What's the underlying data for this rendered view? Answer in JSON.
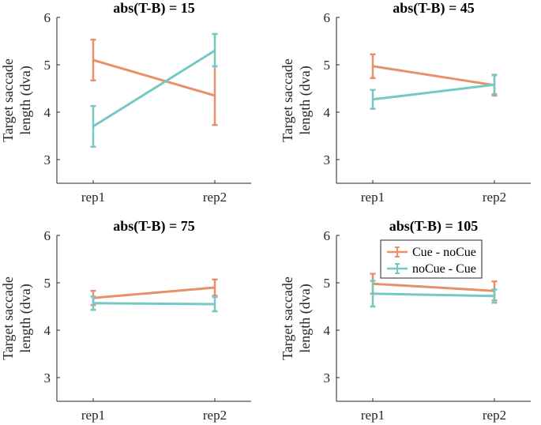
{
  "colors": {
    "cue_nocue": "#E8906A",
    "nocue_cue": "#74C9C5",
    "axis": "#262626"
  },
  "chart_data": [
    {
      "type": "line",
      "title": "abs(T-B) = 15",
      "categories": [
        "rep1",
        "rep2"
      ],
      "ylabel_line1": "Target saccade",
      "ylabel_line2": "length (dva)",
      "ylim": [
        2.5,
        6
      ],
      "yticks": [
        "3",
        "4",
        "5",
        "6"
      ],
      "series": [
        {
          "name": "Cue - noCue",
          "values": [
            5.1,
            4.35
          ],
          "err_low": [
            4.67,
            3.73
          ],
          "err_high": [
            5.53,
            4.97
          ]
        },
        {
          "name": "noCue - Cue",
          "values": [
            3.7,
            5.3
          ],
          "err_low": [
            3.27,
            4.97
          ],
          "err_high": [
            4.13,
            5.65
          ]
        }
      ]
    },
    {
      "type": "line",
      "title": "abs(T-B) = 45",
      "categories": [
        "rep1",
        "rep2"
      ],
      "ylabel_line1": "Target saccade",
      "ylabel_line2": "length (dva)",
      "ylim": [
        2.5,
        6
      ],
      "yticks": [
        "3",
        "4",
        "5",
        "6"
      ],
      "series": [
        {
          "name": "Cue - noCue",
          "values": [
            4.97,
            4.57
          ],
          "err_low": [
            4.72,
            4.35
          ],
          "err_high": [
            5.22,
            4.79
          ]
        },
        {
          "name": "noCue - Cue",
          "values": [
            4.27,
            4.58
          ],
          "err_low": [
            4.07,
            4.38
          ],
          "err_high": [
            4.47,
            4.78
          ]
        }
      ]
    },
    {
      "type": "line",
      "title": "abs(T-B) = 75",
      "categories": [
        "rep1",
        "rep2"
      ],
      "ylabel_line1": "Target saccade",
      "ylabel_line2": "length (dva)",
      "ylim": [
        2.5,
        6
      ],
      "yticks": [
        "3",
        "4",
        "5",
        "6"
      ],
      "series": [
        {
          "name": "Cue - noCue",
          "values": [
            4.68,
            4.9
          ],
          "err_low": [
            4.53,
            4.73
          ],
          "err_high": [
            4.83,
            5.07
          ]
        },
        {
          "name": "noCue - Cue",
          "values": [
            4.57,
            4.55
          ],
          "err_low": [
            4.43,
            4.4
          ],
          "err_high": [
            4.71,
            4.7
          ]
        }
      ]
    },
    {
      "type": "line",
      "title": "abs(T-B) = 105",
      "categories": [
        "rep1",
        "rep2"
      ],
      "ylabel_line1": "Target saccade",
      "ylabel_line2": "length (dva)",
      "ylim": [
        2.5,
        6
      ],
      "yticks": [
        "3",
        "4",
        "5",
        "6"
      ],
      "legend": [
        "Cue - noCue",
        "noCue - Cue"
      ],
      "legend_position": "top-center",
      "series": [
        {
          "name": "Cue - noCue",
          "values": [
            4.98,
            4.83
          ],
          "err_low": [
            4.77,
            4.63
          ],
          "err_high": [
            5.19,
            5.03
          ]
        },
        {
          "name": "noCue - Cue",
          "values": [
            4.77,
            4.72
          ],
          "err_low": [
            4.5,
            4.58
          ],
          "err_high": [
            5.04,
            4.86
          ]
        }
      ]
    }
  ]
}
